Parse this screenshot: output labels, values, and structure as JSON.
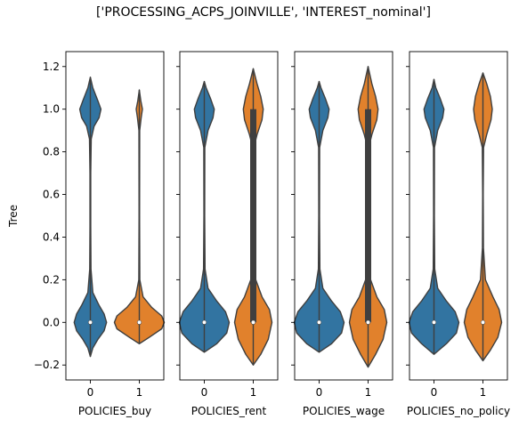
{
  "figure": {
    "title": "['PROCESSING_ACPS_JOINVILLE', 'INTEREST_nominal']"
  },
  "chart_data": {
    "type": "violin",
    "title": "['PROCESSING_ACPS_JOINVILLE', 'INTEREST_nominal']",
    "ylabel": "Tree",
    "ylim": [
      -0.27,
      1.27
    ],
    "yticks": [
      -0.2,
      0.0,
      0.2,
      0.4,
      0.6,
      0.8,
      1.0,
      1.2
    ],
    "ytick_labels": [
      "−0.2",
      "0.0",
      "0.2",
      "0.4",
      "0.6",
      "0.8",
      "1.0",
      "1.2"
    ],
    "sharey": true,
    "grid": false,
    "colors": {
      "0": "#3274a1",
      "1": "#e1812c",
      "edge": "#3f3f3f",
      "box": "#3f3f3f",
      "median": "#ffffff"
    },
    "panels": [
      {
        "xlabel": "POLICIES_buy",
        "categories": [
          "0",
          "1"
        ],
        "violins": [
          {
            "category": "0",
            "min": -0.16,
            "max": 1.15,
            "median": 0.0,
            "q1": 0.0,
            "q3": 0.0,
            "profile": [
              [
                -0.16,
                0
              ],
              [
                -0.12,
                0.02
              ],
              [
                -0.08,
                0.06
              ],
              [
                -0.04,
                0.11
              ],
              [
                0,
                0.13
              ],
              [
                0.04,
                0.11
              ],
              [
                0.08,
                0.07
              ],
              [
                0.14,
                0.02
              ],
              [
                0.25,
                0.005
              ],
              [
                0.45,
                0.003
              ],
              [
                0.7,
                0.003
              ],
              [
                0.86,
                0.007
              ],
              [
                0.92,
                0.03
              ],
              [
                0.96,
                0.07
              ],
              [
                1.0,
                0.085
              ],
              [
                1.04,
                0.06
              ],
              [
                1.1,
                0.02
              ],
              [
                1.15,
                0
              ]
            ]
          },
          {
            "category": "1",
            "min": -0.1,
            "max": 1.09,
            "median": 0.0,
            "q1": 0.0,
            "q3": 0.0,
            "profile": [
              [
                -0.1,
                0
              ],
              [
                -0.07,
                0.08
              ],
              [
                -0.03,
                0.18
              ],
              [
                0,
                0.2
              ],
              [
                0.03,
                0.18
              ],
              [
                0.07,
                0.1
              ],
              [
                0.12,
                0.03
              ],
              [
                0.2,
                0.004
              ],
              [
                0.5,
                0.002
              ],
              [
                0.9,
                0.003
              ],
              [
                0.96,
                0.015
              ],
              [
                1.0,
                0.025
              ],
              [
                1.04,
                0.012
              ],
              [
                1.09,
                0
              ]
            ]
          }
        ]
      },
      {
        "xlabel": "POLICIES_rent",
        "categories": [
          "0",
          "1"
        ],
        "violins": [
          {
            "category": "0",
            "min": -0.14,
            "max": 1.13,
            "median": 0.0,
            "q1": 0.0,
            "q3": 0.0,
            "profile": [
              [
                -0.14,
                0
              ],
              [
                -0.1,
                0.1
              ],
              [
                -0.05,
                0.18
              ],
              [
                0,
                0.2
              ],
              [
                0.05,
                0.17
              ],
              [
                0.1,
                0.1
              ],
              [
                0.16,
                0.03
              ],
              [
                0.25,
                0.006
              ],
              [
                0.5,
                0.003
              ],
              [
                0.82,
                0.004
              ],
              [
                0.9,
                0.03
              ],
              [
                0.96,
                0.07
              ],
              [
                1.0,
                0.08
              ],
              [
                1.05,
                0.05
              ],
              [
                1.1,
                0.015
              ],
              [
                1.13,
                0
              ]
            ]
          },
          {
            "category": "1",
            "min": -0.2,
            "max": 1.19,
            "median": 0.0,
            "q1": 0.0,
            "q3": 1.0,
            "profile": [
              [
                -0.2,
                0
              ],
              [
                -0.15,
                0.06
              ],
              [
                -0.08,
                0.12
              ],
              [
                0,
                0.15
              ],
              [
                0.06,
                0.13
              ],
              [
                0.12,
                0.07
              ],
              [
                0.2,
                0.02
              ],
              [
                0.35,
                0.004
              ],
              [
                0.6,
                0.002
              ],
              [
                0.82,
                0.005
              ],
              [
                0.88,
                0.03
              ],
              [
                0.95,
                0.07
              ],
              [
                1.0,
                0.08
              ],
              [
                1.06,
                0.06
              ],
              [
                1.12,
                0.03
              ],
              [
                1.19,
                0
              ]
            ]
          }
        ]
      },
      {
        "xlabel": "POLICIES_wage",
        "categories": [
          "0",
          "1"
        ],
        "violins": [
          {
            "category": "0",
            "min": -0.14,
            "max": 1.13,
            "median": 0.0,
            "q1": 0.0,
            "q3": 0.0,
            "profile": [
              [
                -0.14,
                0
              ],
              [
                -0.1,
                0.1
              ],
              [
                -0.05,
                0.18
              ],
              [
                0,
                0.2
              ],
              [
                0.05,
                0.17
              ],
              [
                0.1,
                0.1
              ],
              [
                0.16,
                0.03
              ],
              [
                0.25,
                0.006
              ],
              [
                0.5,
                0.003
              ],
              [
                0.82,
                0.004
              ],
              [
                0.9,
                0.03
              ],
              [
                0.96,
                0.07
              ],
              [
                1.0,
                0.08
              ],
              [
                1.05,
                0.05
              ],
              [
                1.1,
                0.015
              ],
              [
                1.13,
                0
              ]
            ]
          },
          {
            "category": "1",
            "min": -0.21,
            "max": 1.2,
            "median": 0.0,
            "q1": 0.0,
            "q3": 1.0,
            "profile": [
              [
                -0.21,
                0
              ],
              [
                -0.15,
                0.06
              ],
              [
                -0.08,
                0.12
              ],
              [
                0,
                0.15
              ],
              [
                0.06,
                0.13
              ],
              [
                0.12,
                0.07
              ],
              [
                0.2,
                0.02
              ],
              [
                0.35,
                0.004
              ],
              [
                0.6,
                0.002
              ],
              [
                0.82,
                0.005
              ],
              [
                0.88,
                0.03
              ],
              [
                0.95,
                0.07
              ],
              [
                1.0,
                0.08
              ],
              [
                1.06,
                0.06
              ],
              [
                1.12,
                0.03
              ],
              [
                1.2,
                0
              ]
            ]
          }
        ]
      },
      {
        "xlabel": "POLICIES_no_policy",
        "categories": [
          "0",
          "1"
        ],
        "violins": [
          {
            "category": "0",
            "min": -0.15,
            "max": 1.14,
            "median": 0.0,
            "q1": 0.0,
            "q3": 0.0,
            "profile": [
              [
                -0.15,
                0
              ],
              [
                -0.1,
                0.1
              ],
              [
                -0.05,
                0.18
              ],
              [
                0,
                0.2
              ],
              [
                0.05,
                0.17
              ],
              [
                0.1,
                0.1
              ],
              [
                0.16,
                0.03
              ],
              [
                0.25,
                0.006
              ],
              [
                0.5,
                0.003
              ],
              [
                0.82,
                0.004
              ],
              [
                0.9,
                0.03
              ],
              [
                0.96,
                0.07
              ],
              [
                1.0,
                0.08
              ],
              [
                1.05,
                0.05
              ],
              [
                1.1,
                0.015
              ],
              [
                1.14,
                0
              ]
            ]
          },
          {
            "category": "1",
            "min": -0.18,
            "max": 1.17,
            "median": 0.0,
            "q1": 0.0,
            "q3": 0.0,
            "profile": [
              [
                -0.18,
                0
              ],
              [
                -0.13,
                0.06
              ],
              [
                -0.07,
                0.12
              ],
              [
                0,
                0.15
              ],
              [
                0.06,
                0.13
              ],
              [
                0.12,
                0.08
              ],
              [
                0.2,
                0.02
              ],
              [
                0.35,
                0.004
              ],
              [
                0.6,
                0.002
              ],
              [
                0.82,
                0.005
              ],
              [
                0.88,
                0.03
              ],
              [
                0.95,
                0.065
              ],
              [
                1.0,
                0.075
              ],
              [
                1.06,
                0.06
              ],
              [
                1.12,
                0.03
              ],
              [
                1.17,
                0
              ]
            ]
          }
        ]
      }
    ]
  }
}
